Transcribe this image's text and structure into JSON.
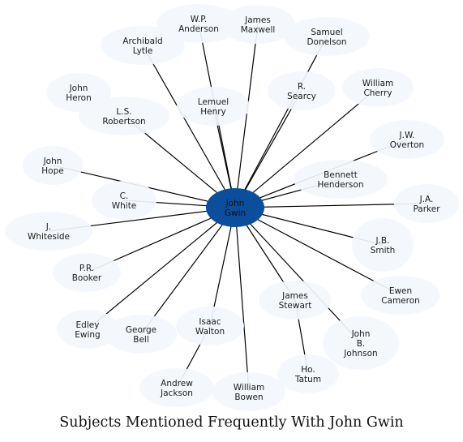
{
  "caption": "Subjects Mentioned Frequently With John Gwin",
  "colors": {
    "hub_fill": "#0b4e9c",
    "node_fill": "#f3f7fd",
    "edge": "#000000",
    "text": "#1a1a1a"
  },
  "hub": {
    "id": "john-gwin",
    "lines": [
      "John",
      "Gwin"
    ]
  },
  "nodes": [
    {
      "id": "wp-anderson",
      "lines": [
        "W.P.",
        "Anderson"
      ]
    },
    {
      "id": "james-maxwell",
      "lines": [
        "James",
        "Maxwell"
      ]
    },
    {
      "id": "samuel-donelson",
      "lines": [
        "Samuel",
        "Donelson"
      ]
    },
    {
      "id": "archibald-lytle",
      "lines": [
        "Archibald",
        "Lytle"
      ]
    },
    {
      "id": "john-heron",
      "lines": [
        "John",
        "Heron"
      ]
    },
    {
      "id": "lemuel-henry",
      "lines": [
        "Lemuel",
        "Henry"
      ]
    },
    {
      "id": "r-searcy",
      "lines": [
        "R.",
        "Searcy"
      ]
    },
    {
      "id": "william-cherry",
      "lines": [
        "William",
        "Cherry"
      ]
    },
    {
      "id": "ls-robertson",
      "lines": [
        "L.S.",
        "Robertson"
      ]
    },
    {
      "id": "jw-overton",
      "lines": [
        "J.W.",
        "Overton"
      ]
    },
    {
      "id": "john-hope",
      "lines": [
        "John",
        "Hope"
      ]
    },
    {
      "id": "bennett-henderson",
      "lines": [
        "Bennett",
        "Henderson"
      ]
    },
    {
      "id": "c-white",
      "lines": [
        "C.",
        "White"
      ]
    },
    {
      "id": "ja-parker",
      "lines": [
        "J.A.",
        "Parker"
      ]
    },
    {
      "id": "j-whiteside",
      "lines": [
        "J.",
        "Whiteside"
      ]
    },
    {
      "id": "jb-smith",
      "lines": [
        "J.B.",
        "Smith"
      ]
    },
    {
      "id": "pr-booker",
      "lines": [
        "P.R.",
        "Booker"
      ]
    },
    {
      "id": "ewen-cameron",
      "lines": [
        "Ewen",
        "Cameron"
      ]
    },
    {
      "id": "james-stewart",
      "lines": [
        "James",
        "Stewart"
      ]
    },
    {
      "id": "edley-ewing",
      "lines": [
        "Edley",
        "Ewing"
      ]
    },
    {
      "id": "george-bell",
      "lines": [
        "George",
        "Bell"
      ]
    },
    {
      "id": "isaac-walton",
      "lines": [
        "Isaac",
        "Walton"
      ]
    },
    {
      "id": "john-b-johnson",
      "lines": [
        "John",
        "B.",
        "Johnson"
      ]
    },
    {
      "id": "andrew-jackson",
      "lines": [
        "Andrew",
        "Jackson"
      ]
    },
    {
      "id": "william-bowen",
      "lines": [
        "William",
        "Bowen"
      ]
    },
    {
      "id": "ho-tatum",
      "lines": [
        "Ho.",
        "Tatum"
      ]
    }
  ],
  "edges": [
    [
      "john-gwin",
      "wp-anderson"
    ],
    [
      "john-gwin",
      "james-maxwell"
    ],
    [
      "john-gwin",
      "samuel-donelson"
    ],
    [
      "john-gwin",
      "archibald-lytle"
    ],
    [
      "john-gwin",
      "lemuel-henry"
    ],
    [
      "john-gwin",
      "r-searcy"
    ],
    [
      "john-gwin",
      "william-cherry"
    ],
    [
      "john-gwin",
      "ls-robertson"
    ],
    [
      "john-gwin",
      "jw-overton"
    ],
    [
      "john-gwin",
      "john-hope"
    ],
    [
      "john-gwin",
      "bennett-henderson"
    ],
    [
      "john-gwin",
      "c-white"
    ],
    [
      "john-gwin",
      "ja-parker"
    ],
    [
      "john-gwin",
      "j-whiteside"
    ],
    [
      "john-gwin",
      "jb-smith"
    ],
    [
      "john-gwin",
      "pr-booker"
    ],
    [
      "john-gwin",
      "ewen-cameron"
    ],
    [
      "john-gwin",
      "james-stewart"
    ],
    [
      "john-gwin",
      "edley-ewing"
    ],
    [
      "john-gwin",
      "george-bell"
    ],
    [
      "john-gwin",
      "isaac-walton"
    ],
    [
      "john-gwin",
      "john-b-johnson"
    ],
    [
      "john-gwin",
      "william-bowen"
    ],
    [
      "isaac-walton",
      "andrew-jackson"
    ],
    [
      "james-stewart",
      "ho-tatum"
    ]
  ]
}
